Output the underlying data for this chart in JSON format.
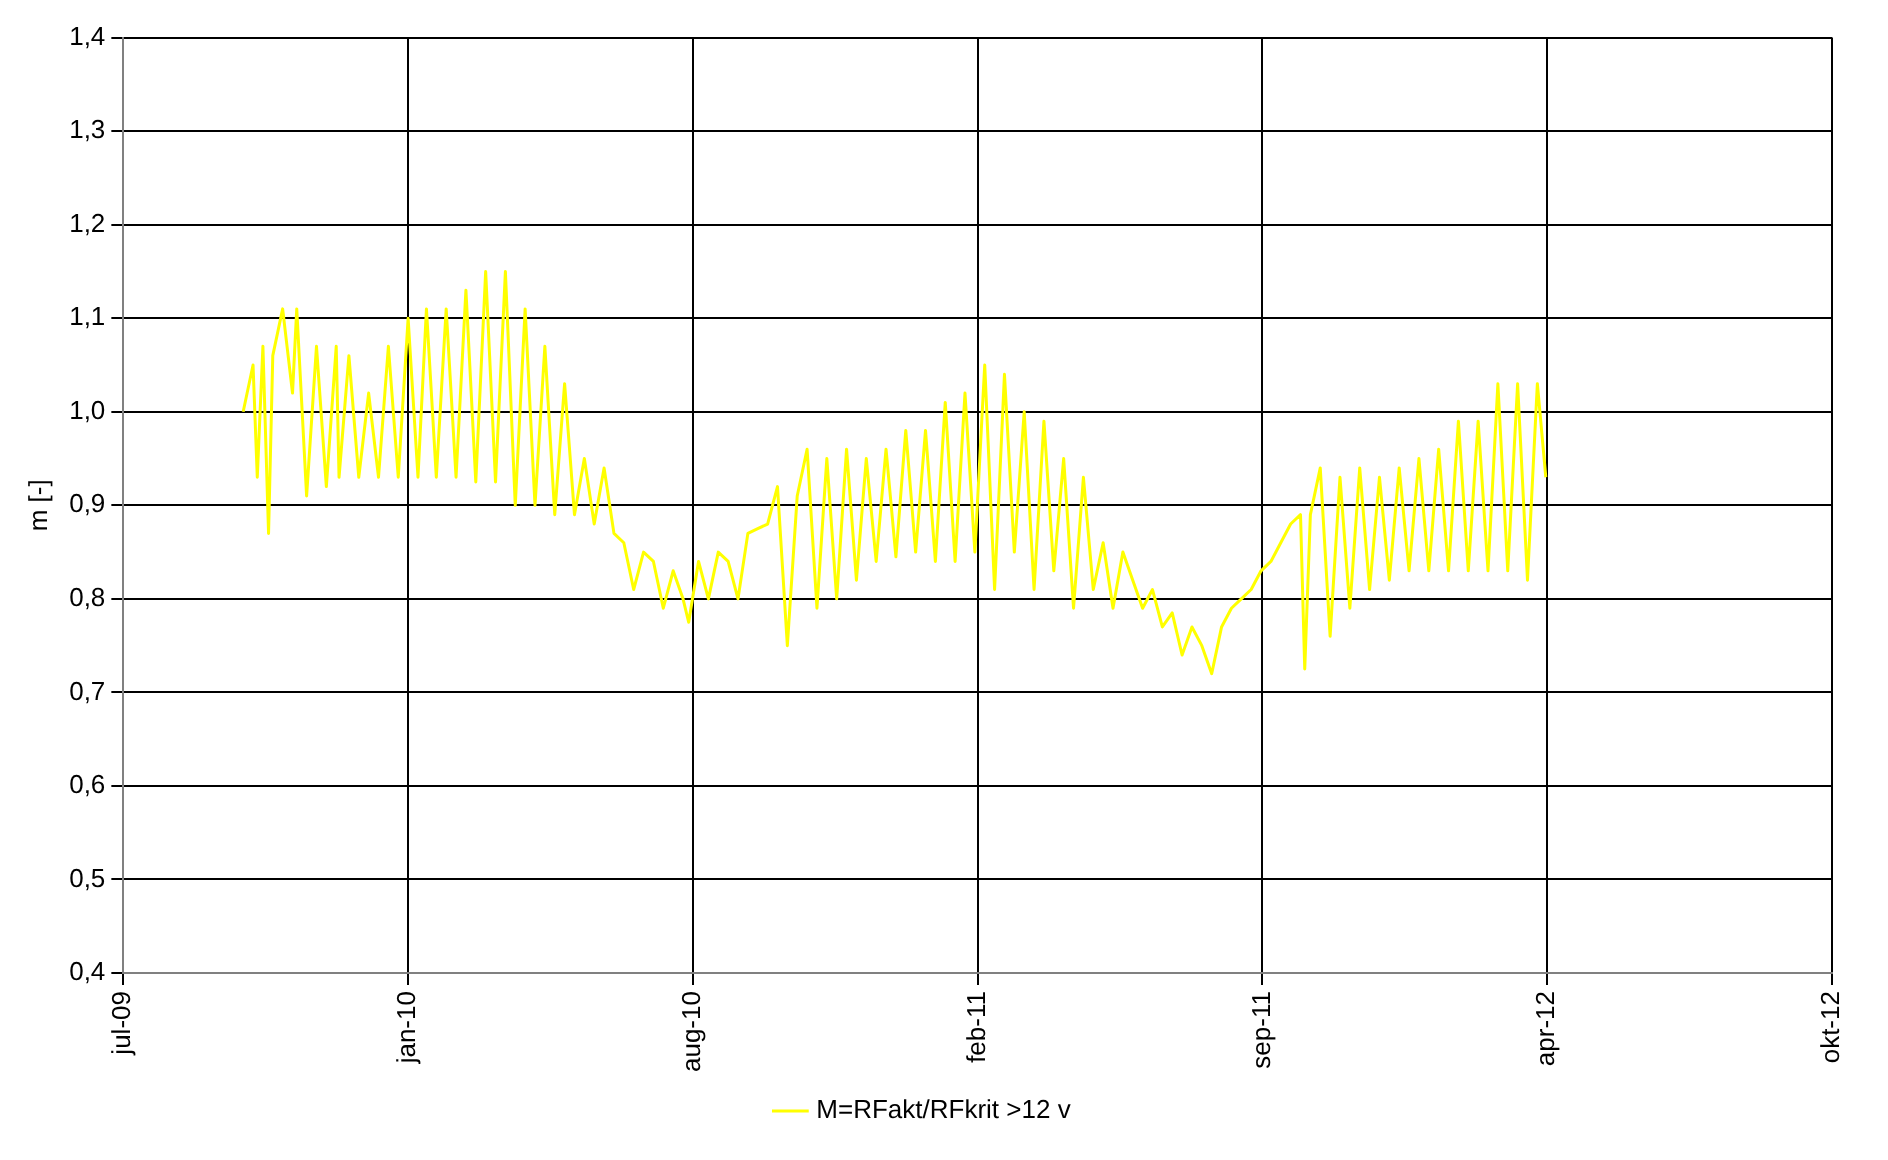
{
  "chart_data": {
    "type": "line",
    "ylabel": "m [-]",
    "legend": "bottom",
    "grid": true,
    "marker": "none",
    "line_style": "solid",
    "xlim": [
      "2009-07-01",
      "2012-10-25"
    ],
    "xticks": [
      {
        "value": "2009-07-01",
        "label": "jul-09"
      },
      {
        "value": "2010-01-19",
        "label": "jan-10"
      },
      {
        "value": "2010-08-09",
        "label": "aug-10"
      },
      {
        "value": "2011-02-27",
        "label": "feb-11"
      },
      {
        "value": "2011-09-17",
        "label": "sep-11"
      },
      {
        "value": "2012-04-06",
        "label": "apr-12"
      },
      {
        "value": "2012-10-25",
        "label": "okt-12"
      }
    ],
    "ylim": [
      0.4,
      1.4
    ],
    "yticks": [
      {
        "value": 0.4,
        "label": "0,4"
      },
      {
        "value": 0.5,
        "label": "0,5"
      },
      {
        "value": 0.6,
        "label": "0,6"
      },
      {
        "value": 0.7,
        "label": "0,7"
      },
      {
        "value": 0.8,
        "label": "0,8"
      },
      {
        "value": 0.9,
        "label": "0,9"
      },
      {
        "value": 1.0,
        "label": "1,0"
      },
      {
        "value": 1.1,
        "label": "1,1"
      },
      {
        "value": 1.2,
        "label": "1,2"
      },
      {
        "value": 1.3,
        "label": "1,3"
      },
      {
        "value": 1.4,
        "label": "1,4"
      }
    ],
    "x": [
      "2009-09-24",
      "2009-10-01",
      "2009-10-04",
      "2009-10-08",
      "2009-10-12",
      "2009-10-15",
      "2009-10-22",
      "2009-10-29",
      "2009-11-01",
      "2009-11-08",
      "2009-11-15",
      "2009-11-22",
      "2009-11-29",
      "2009-12-01",
      "2009-12-08",
      "2009-12-15",
      "2009-12-22",
      "2009-12-29",
      "2010-01-05",
      "2010-01-12",
      "2010-01-19",
      "2010-01-26",
      "2010-02-01",
      "2010-02-08",
      "2010-02-15",
      "2010-02-22",
      "2010-03-01",
      "2010-03-08",
      "2010-03-15",
      "2010-03-22",
      "2010-03-29",
      "2010-04-05",
      "2010-04-12",
      "2010-04-19",
      "2010-04-26",
      "2010-05-03",
      "2010-05-10",
      "2010-05-17",
      "2010-05-24",
      "2010-05-31",
      "2010-06-07",
      "2010-06-14",
      "2010-06-21",
      "2010-06-28",
      "2010-07-05",
      "2010-07-12",
      "2010-07-19",
      "2010-07-26",
      "2010-08-02",
      "2010-08-06",
      "2010-08-13",
      "2010-08-20",
      "2010-08-27",
      "2010-09-03",
      "2010-09-10",
      "2010-09-17",
      "2010-09-24",
      "2010-10-01",
      "2010-10-08",
      "2010-10-15",
      "2010-10-22",
      "2010-10-29",
      "2010-11-05",
      "2010-11-12",
      "2010-11-19",
      "2010-11-26",
      "2010-12-03",
      "2010-12-10",
      "2010-12-17",
      "2010-12-24",
      "2010-12-31",
      "2011-01-07",
      "2011-01-14",
      "2011-01-21",
      "2011-01-28",
      "2011-02-04",
      "2011-02-11",
      "2011-02-18",
      "2011-02-25",
      "2011-03-04",
      "2011-03-11",
      "2011-03-18",
      "2011-03-25",
      "2011-04-01",
      "2011-04-08",
      "2011-04-15",
      "2011-04-22",
      "2011-04-29",
      "2011-05-06",
      "2011-05-13",
      "2011-05-20",
      "2011-05-27",
      "2011-06-03",
      "2011-06-10",
      "2011-06-17",
      "2011-06-24",
      "2011-07-01",
      "2011-07-08",
      "2011-07-15",
      "2011-07-22",
      "2011-07-29",
      "2011-08-05",
      "2011-08-12",
      "2011-08-19",
      "2011-08-26",
      "2011-09-02",
      "2011-09-09",
      "2011-09-16",
      "2011-09-23",
      "2011-09-30",
      "2011-10-07",
      "2011-10-14",
      "2011-10-17",
      "2011-10-21",
      "2011-10-28",
      "2011-11-04",
      "2011-11-11",
      "2011-11-18",
      "2011-11-25",
      "2011-12-02",
      "2011-12-09",
      "2011-12-16",
      "2011-12-23",
      "2011-12-30",
      "2012-01-06",
      "2012-01-13",
      "2012-01-20",
      "2012-01-27",
      "2012-02-03",
      "2012-02-10",
      "2012-02-17",
      "2012-02-24",
      "2012-03-02",
      "2012-03-09",
      "2012-03-16",
      "2012-03-23",
      "2012-03-30",
      "2012-04-05"
    ],
    "series": [
      {
        "name": "M=RFakt/RFkrit >12 v",
        "color": "#ffff00",
        "values": [
          1.0,
          1.05,
          0.93,
          1.07,
          0.87,
          1.06,
          1.11,
          1.02,
          1.11,
          0.91,
          1.07,
          0.92,
          1.07,
          0.93,
          1.06,
          0.93,
          1.02,
          0.93,
          1.07,
          0.93,
          1.1,
          0.93,
          1.11,
          0.93,
          1.11,
          0.93,
          1.13,
          0.925,
          1.15,
          0.925,
          1.15,
          0.9,
          1.11,
          0.9,
          1.07,
          0.89,
          1.03,
          0.89,
          0.95,
          0.88,
          0.94,
          0.87,
          0.86,
          0.81,
          0.85,
          0.84,
          0.79,
          0.83,
          0.8,
          0.775,
          0.84,
          0.8,
          0.85,
          0.84,
          0.8,
          0.87,
          0.875,
          0.88,
          0.92,
          0.75,
          0.91,
          0.96,
          0.79,
          0.95,
          0.8,
          0.96,
          0.82,
          0.95,
          0.84,
          0.96,
          0.845,
          0.98,
          0.85,
          0.98,
          0.84,
          1.01,
          0.84,
          1.02,
          0.85,
          1.05,
          0.81,
          1.04,
          0.85,
          1.0,
          0.81,
          0.99,
          0.83,
          0.95,
          0.79,
          0.93,
          0.81,
          0.86,
          0.79,
          0.85,
          0.82,
          0.79,
          0.81,
          0.77,
          0.785,
          0.74,
          0.77,
          0.75,
          0.72,
          0.77,
          0.79,
          0.8,
          0.81,
          0.83,
          0.84,
          0.86,
          0.88,
          0.89,
          0.725,
          0.89,
          0.94,
          0.76,
          0.93,
          0.79,
          0.94,
          0.81,
          0.93,
          0.82,
          0.94,
          0.83,
          0.95,
          0.83,
          0.96,
          0.83,
          0.99,
          0.83,
          0.99,
          0.83,
          1.03,
          0.83,
          1.03,
          0.82,
          1.03,
          0.93
        ]
      }
    ]
  }
}
